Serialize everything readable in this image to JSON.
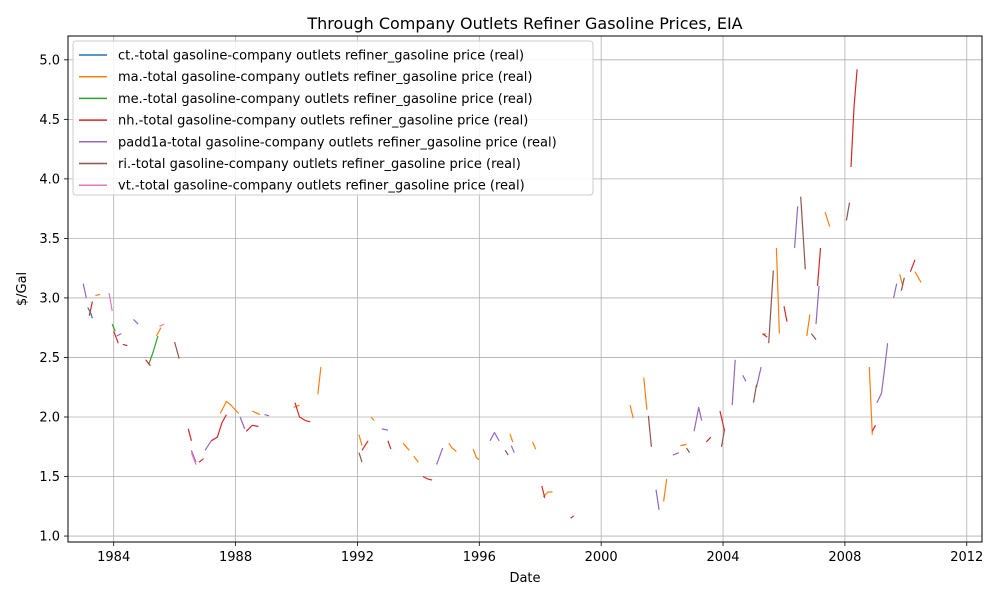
{
  "chart_data": {
    "type": "line",
    "title": "Through Company Outlets Refiner Gasoline Prices, EIA",
    "xlabel": "Date",
    "ylabel": "$/Gal",
    "xlim": [
      1982.5,
      2012.5
    ],
    "ylim": [
      0.95,
      5.2
    ],
    "xticks": [
      1984,
      1988,
      1992,
      1996,
      2000,
      2004,
      2008,
      2012
    ],
    "yticks": [
      1.0,
      1.5,
      2.0,
      2.5,
      3.0,
      3.5,
      4.0,
      4.5,
      5.0
    ],
    "grid": true,
    "legend_position": "top-left",
    "series": [
      {
        "name": "ct.-total gasoline-company outlets refiner_gasoline price (real)",
        "color": "#1f77b4",
        "segments": [
          [
            [
              1983.15,
              2.92
            ],
            [
              1983.25,
              2.87
            ],
            [
              1983.3,
              2.83
            ]
          ]
        ]
      },
      {
        "name": "ma.-total gasoline-company outlets refiner_gasoline price (real)",
        "color": "#ff7f0e",
        "segments": [
          [
            [
              1983.4,
              3.02
            ],
            [
              1983.55,
              3.03
            ]
          ],
          [
            [
              1985.4,
              2.68
            ],
            [
              1985.55,
              2.75
            ]
          ],
          [
            [
              1987.5,
              2.03
            ],
            [
              1987.7,
              2.13
            ],
            [
              1987.85,
              2.1
            ],
            [
              1988.1,
              2.03
            ]
          ],
          [
            [
              1988.55,
              2.05
            ],
            [
              1988.8,
              2.02
            ]
          ],
          [
            [
              1989.9,
              2.08
            ],
            [
              1990.1,
              2.1
            ]
          ],
          [
            [
              1990.7,
              2.19
            ],
            [
              1990.8,
              2.42
            ]
          ],
          [
            [
              1992.05,
              1.85
            ],
            [
              1992.15,
              1.76
            ]
          ],
          [
            [
              1992.45,
              2.0
            ],
            [
              1992.55,
              1.97
            ]
          ],
          [
            [
              1993.5,
              1.78
            ],
            [
              1993.7,
              1.72
            ]
          ],
          [
            [
              1993.85,
              1.67
            ],
            [
              1994.0,
              1.62
            ]
          ],
          [
            [
              1995.0,
              1.78
            ],
            [
              1995.1,
              1.74
            ],
            [
              1995.25,
              1.71
            ]
          ],
          [
            [
              1995.8,
              1.73
            ],
            [
              1995.9,
              1.66
            ],
            [
              1996.0,
              1.64
            ]
          ],
          [
            [
              1997.0,
              1.86
            ],
            [
              1997.1,
              1.79
            ]
          ],
          [
            [
              1997.75,
              1.79
            ],
            [
              1997.85,
              1.73
            ]
          ],
          [
            [
              1998.1,
              1.33
            ],
            [
              1998.25,
              1.37
            ],
            [
              1998.4,
              1.37
            ]
          ],
          [
            [
              2000.95,
              2.1
            ],
            [
              2001.05,
              1.99
            ]
          ],
          [
            [
              2001.4,
              2.33
            ],
            [
              2001.5,
              2.06
            ]
          ],
          [
            [
              2002.05,
              1.29
            ],
            [
              2002.15,
              1.48
            ]
          ],
          [
            [
              2002.6,
              1.76
            ],
            [
              2002.8,
              1.77
            ]
          ],
          [
            [
              2005.3,
              2.69
            ],
            [
              2005.4,
              2.7
            ]
          ],
          [
            [
              2005.75,
              3.42
            ],
            [
              2005.85,
              2.7
            ]
          ],
          [
            [
              2006.85,
              2.86
            ],
            [
              2006.75,
              2.68
            ]
          ],
          [
            [
              2007.35,
              3.72
            ],
            [
              2007.5,
              3.6
            ]
          ],
          [
            [
              2008.8,
              2.42
            ],
            [
              2008.9,
              1.85
            ]
          ],
          [
            [
              2009.8,
              3.2
            ],
            [
              2009.9,
              3.1
            ]
          ],
          [
            [
              2010.3,
              3.22
            ],
            [
              2010.5,
              3.13
            ]
          ]
        ]
      },
      {
        "name": "me.-total gasoline-company outlets refiner_gasoline price (real)",
        "color": "#2ca02c",
        "segments": [
          [
            [
              1983.95,
              2.78
            ],
            [
              1984.05,
              2.72
            ]
          ],
          [
            [
              1985.15,
              2.44
            ],
            [
              1985.3,
              2.55
            ],
            [
              1985.45,
              2.68
            ]
          ]
        ]
      },
      {
        "name": "nh.-total gasoline-company outlets refiner_gasoline price (real)",
        "color": "#d62728",
        "segments": [
          [
            [
              1983.2,
              2.85
            ],
            [
              1983.3,
              2.97
            ]
          ],
          [
            [
              1984.0,
              2.72
            ],
            [
              1984.15,
              2.62
            ]
          ],
          [
            [
              1984.3,
              2.61
            ],
            [
              1984.45,
              2.6
            ]
          ],
          [
            [
              1985.05,
              2.48
            ],
            [
              1985.2,
              2.43
            ]
          ],
          [
            [
              1986.45,
              1.9
            ],
            [
              1986.55,
              1.8
            ]
          ],
          [
            [
              1986.8,
              1.62
            ],
            [
              1986.95,
              1.65
            ]
          ],
          [
            [
              1987.2,
              1.8
            ],
            [
              1987.4,
              1.83
            ],
            [
              1987.55,
              1.95
            ],
            [
              1987.7,
              2.02
            ]
          ],
          [
            [
              1988.35,
              1.88
            ],
            [
              1988.55,
              1.93
            ],
            [
              1988.75,
              1.92
            ]
          ],
          [
            [
              1989.95,
              2.12
            ],
            [
              1990.1,
              2.0
            ],
            [
              1990.3,
              1.97
            ],
            [
              1990.45,
              1.96
            ]
          ],
          [
            [
              1992.15,
              1.72
            ],
            [
              1992.35,
              1.8
            ]
          ],
          [
            [
              1993.0,
              1.8
            ],
            [
              1993.1,
              1.73
            ]
          ],
          [
            [
              1994.15,
              1.5
            ],
            [
              1994.3,
              1.48
            ],
            [
              1994.45,
              1.47
            ]
          ],
          [
            [
              1998.05,
              1.42
            ],
            [
              1998.15,
              1.32
            ]
          ],
          [
            [
              1999.0,
              1.15
            ],
            [
              1999.1,
              1.17
            ]
          ],
          [
            [
              2003.45,
              1.79
            ],
            [
              2003.6,
              1.83
            ]
          ],
          [
            [
              2003.9,
              2.05
            ],
            [
              2004.05,
              1.88
            ]
          ],
          [
            [
              2005.3,
              2.7
            ],
            [
              2005.45,
              2.67
            ]
          ],
          [
            [
              2006.0,
              2.93
            ],
            [
              2006.1,
              2.8
            ]
          ],
          [
            [
              2007.1,
              3.1
            ],
            [
              2007.2,
              3.42
            ]
          ],
          [
            [
              2008.2,
              4.1
            ],
            [
              2008.3,
              4.6
            ],
            [
              2008.4,
              4.92
            ]
          ],
          [
            [
              2008.9,
              1.88
            ],
            [
              2009.0,
              1.93
            ]
          ],
          [
            [
              2010.15,
              3.22
            ],
            [
              2010.3,
              3.32
            ]
          ]
        ]
      },
      {
        "name": "padd1a-total gasoline-company outlets refiner_gasoline price (real)",
        "color": "#9467bd",
        "segments": [
          [
            [
              1983.0,
              3.12
            ],
            [
              1983.1,
              3.0
            ]
          ],
          [
            [
              1984.1,
              2.68
            ],
            [
              1984.25,
              2.7
            ]
          ],
          [
            [
              1984.65,
              2.82
            ],
            [
              1984.8,
              2.78
            ]
          ],
          [
            [
              1986.55,
              1.72
            ],
            [
              1986.7,
              1.62
            ]
          ],
          [
            [
              1987.0,
              1.72
            ],
            [
              1987.2,
              1.8
            ]
          ],
          [
            [
              1988.15,
              2.0
            ],
            [
              1988.3,
              1.9
            ]
          ],
          [
            [
              1988.95,
              2.02
            ],
            [
              1989.1,
              2.01
            ]
          ],
          [
            [
              1992.8,
              1.9
            ],
            [
              1993.0,
              1.89
            ]
          ],
          [
            [
              1994.6,
              1.6
            ],
            [
              1994.8,
              1.74
            ]
          ],
          [
            [
              1996.35,
              1.8
            ],
            [
              1996.5,
              1.87
            ],
            [
              1996.65,
              1.8
            ]
          ],
          [
            [
              1997.05,
              1.76
            ],
            [
              1997.15,
              1.7
            ]
          ],
          [
            [
              2001.8,
              1.39
            ],
            [
              2001.9,
              1.22
            ]
          ],
          [
            [
              2002.35,
              1.68
            ],
            [
              2002.55,
              1.7
            ]
          ],
          [
            [
              2003.05,
              1.88
            ],
            [
              2003.2,
              2.08
            ],
            [
              2003.3,
              1.97
            ]
          ],
          [
            [
              2004.3,
              2.1
            ],
            [
              2004.4,
              2.48
            ]
          ],
          [
            [
              2004.65,
              2.35
            ],
            [
              2004.75,
              2.3
            ]
          ],
          [
            [
              2005.1,
              2.25
            ],
            [
              2005.25,
              2.42
            ]
          ],
          [
            [
              2006.35,
              3.42
            ],
            [
              2006.45,
              3.77
            ]
          ],
          [
            [
              2007.05,
              2.78
            ],
            [
              2007.15,
              3.1
            ]
          ],
          [
            [
              2009.05,
              2.12
            ],
            [
              2009.2,
              2.2
            ],
            [
              2009.3,
              2.4
            ],
            [
              2009.4,
              2.62
            ]
          ],
          [
            [
              2009.6,
              3.0
            ],
            [
              2009.7,
              3.12
            ]
          ]
        ]
      },
      {
        "name": "ri.-total gasoline-company outlets refiner_gasoline price (real)",
        "color": "#8c564b",
        "segments": [
          [
            [
              1986.0,
              2.63
            ],
            [
              1986.15,
              2.49
            ]
          ],
          [
            [
              1992.05,
              1.7
            ],
            [
              1992.15,
              1.62
            ]
          ],
          [
            [
              1996.85,
              1.72
            ],
            [
              1996.95,
              1.68
            ]
          ],
          [
            [
              2001.55,
              2.01
            ],
            [
              2001.65,
              1.75
            ]
          ],
          [
            [
              2002.8,
              1.74
            ],
            [
              2002.9,
              1.7
            ]
          ],
          [
            [
              2003.95,
              1.75
            ],
            [
              2004.05,
              1.9
            ]
          ],
          [
            [
              2005.0,
              2.12
            ],
            [
              2005.1,
              2.27
            ]
          ],
          [
            [
              2005.5,
              2.62
            ],
            [
              2005.65,
              3.23
            ]
          ],
          [
            [
              2006.55,
              3.85
            ],
            [
              2006.7,
              3.24
            ]
          ],
          [
            [
              2006.9,
              2.7
            ],
            [
              2007.05,
              2.65
            ]
          ],
          [
            [
              2008.05,
              3.65
            ],
            [
              2008.15,
              3.8
            ]
          ],
          [
            [
              2009.85,
              3.06
            ],
            [
              2009.95,
              3.17
            ]
          ]
        ]
      },
      {
        "name": "vt.-total gasoline-company outlets refiner_gasoline price (real)",
        "color": "#e377c2",
        "segments": [
          [
            [
              1983.85,
              3.04
            ],
            [
              1983.95,
              2.89
            ]
          ],
          [
            [
              1985.5,
              2.76
            ],
            [
              1985.65,
              2.78
            ]
          ],
          [
            [
              1986.55,
              1.7
            ],
            [
              1986.7,
              1.6
            ]
          ]
        ]
      }
    ]
  }
}
